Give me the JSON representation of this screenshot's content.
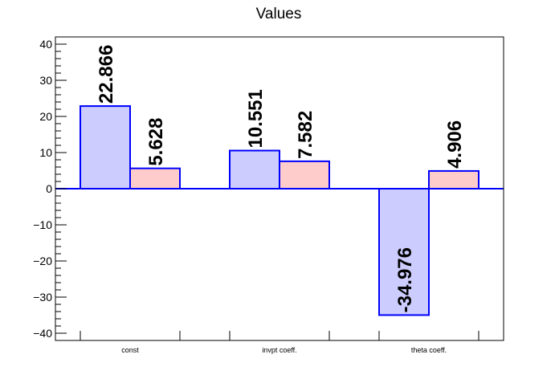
{
  "chart_data": {
    "type": "bar",
    "title": "Values",
    "xlabel": "",
    "ylabel": "",
    "categories": [
      "const",
      "invpt coeff.",
      "theta coeff."
    ],
    "series": [
      {
        "values": [
          22.866,
          10.551,
          -34.976
        ],
        "labels": [
          "22.866",
          "10.551",
          "-34.976"
        ],
        "color": "#ccccff"
      },
      {
        "values": [
          5.628,
          7.582,
          4.906
        ],
        "labels": [
          "5.628",
          "7.582",
          "4.906"
        ],
        "color": "#ffcccc"
      }
    ],
    "bar_outline_color": "#0000ff",
    "ylim": [
      -42,
      42
    ],
    "yticks": [
      -40,
      -30,
      -20,
      -10,
      0,
      10,
      20,
      30,
      40
    ],
    "ytick_labels": [
      "−40",
      "−30",
      "−20",
      "−10",
      "0",
      "10",
      "20",
      "30",
      "40"
    ],
    "grid": false,
    "legend": "none"
  }
}
